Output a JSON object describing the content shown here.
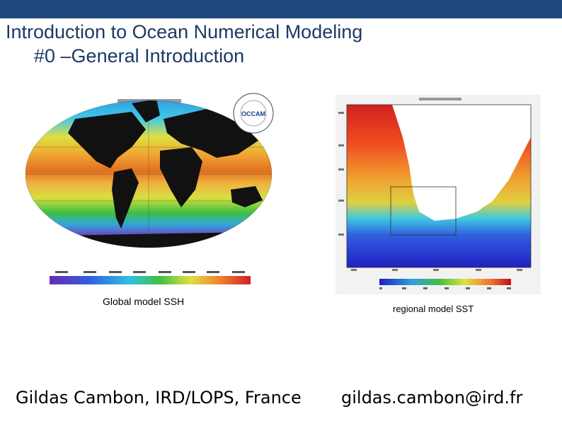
{
  "slide": {
    "title_line1": "Introduction to Ocean Numerical Modeling",
    "title_line2": "#0 –General Introduction",
    "accent_color": "#1f497d"
  },
  "figures": {
    "global": {
      "caption": "Global  model SSH",
      "logo_text": "OCCAM"
    },
    "regional": {
      "caption": "regional model SST"
    }
  },
  "footer": {
    "author": "Gildas Cambon, IRD/LOPS, France",
    "email": "gildas.cambon@ird.fr"
  }
}
